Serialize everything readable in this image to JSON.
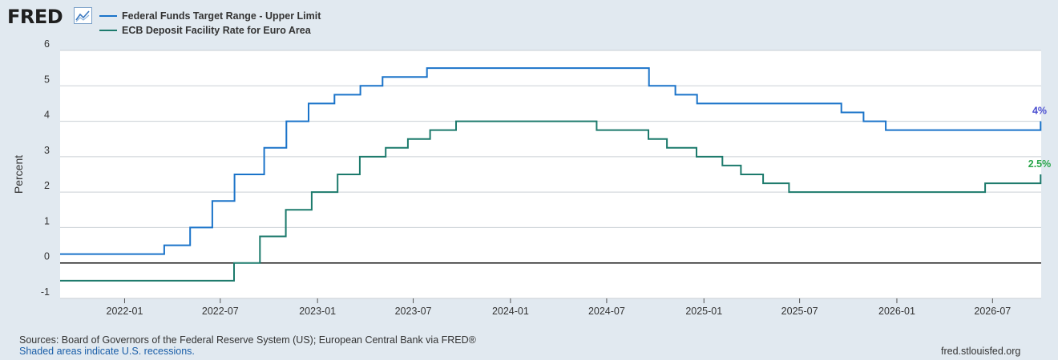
{
  "header": {
    "logo_text": "FRED",
    "logo_icon": "line-chart-icon"
  },
  "footer": {
    "sources": "Sources: Board of Governors of the Federal Reserve System (US); European Central Bank via FRED®",
    "shaded_note": "Shaded areas indicate U.S. recessions.",
    "site": "fred.stlouisfed.org"
  },
  "chart_data": {
    "type": "line",
    "step": true,
    "title": "",
    "xlabel": "",
    "ylabel": "Percent",
    "ylim": [
      -1,
      6
    ],
    "xlim": [
      "2021-09-01",
      "2026-10-01"
    ],
    "yticks": [
      "-1",
      "0",
      "1",
      "2",
      "3",
      "4",
      "5",
      "6"
    ],
    "xticks": [
      "2022-01",
      "2022-07",
      "2023-01",
      "2023-07",
      "2024-01",
      "2024-07",
      "2025-01",
      "2025-07",
      "2026-01",
      "2026-07"
    ],
    "grid": true,
    "legend_position": "top-left",
    "series": [
      {
        "name": "Federal Funds Target Range - Upper Limit",
        "color": "#1a73c9",
        "end_label": "4%",
        "end_label_color": "#4a4ed0",
        "points": [
          [
            "2021-09-01",
            0.25
          ],
          [
            "2022-03-17",
            0.5
          ],
          [
            "2022-05-05",
            1.0
          ],
          [
            "2022-06-16",
            1.75
          ],
          [
            "2022-07-28",
            2.5
          ],
          [
            "2022-09-22",
            3.25
          ],
          [
            "2022-11-03",
            4.0
          ],
          [
            "2022-12-15",
            4.5
          ],
          [
            "2023-02-02",
            4.75
          ],
          [
            "2023-03-23",
            5.0
          ],
          [
            "2023-05-04",
            5.25
          ],
          [
            "2023-07-27",
            5.5
          ],
          [
            "2024-09-19",
            5.0
          ],
          [
            "2024-11-08",
            4.75
          ],
          [
            "2024-12-19",
            4.5
          ],
          [
            "2025-09-18",
            4.25
          ],
          [
            "2025-10-30",
            4.0
          ],
          [
            "2025-12-11",
            3.75
          ],
          [
            "2026-09-30",
            4.0
          ]
        ]
      },
      {
        "name": "ECB Deposit Facility Rate for Euro Area",
        "color": "#1c7a6c",
        "end_label": "2.5%",
        "end_label_color": "#29a64a",
        "points": [
          [
            "2021-09-01",
            -0.5
          ],
          [
            "2022-07-27",
            0.0
          ],
          [
            "2022-09-14",
            0.75
          ],
          [
            "2022-11-02",
            1.5
          ],
          [
            "2022-12-21",
            2.0
          ],
          [
            "2023-02-08",
            2.5
          ],
          [
            "2023-03-22",
            3.0
          ],
          [
            "2023-05-10",
            3.25
          ],
          [
            "2023-06-21",
            3.5
          ],
          [
            "2023-08-02",
            3.75
          ],
          [
            "2023-09-20",
            4.0
          ],
          [
            "2024-06-12",
            3.75
          ],
          [
            "2024-09-18",
            3.5
          ],
          [
            "2024-10-23",
            3.25
          ],
          [
            "2024-12-18",
            3.0
          ],
          [
            "2025-02-05",
            2.75
          ],
          [
            "2025-03-12",
            2.5
          ],
          [
            "2025-04-23",
            2.25
          ],
          [
            "2025-06-11",
            2.0
          ],
          [
            "2026-06-17",
            2.25
          ],
          [
            "2026-09-30",
            2.5
          ]
        ]
      }
    ]
  }
}
